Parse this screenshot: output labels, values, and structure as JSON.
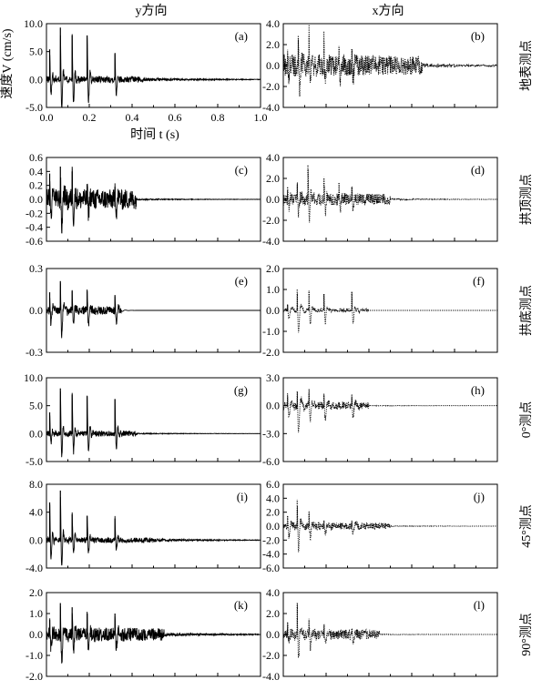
{
  "headings": {
    "left": "y方向",
    "right": "x方向"
  },
  "ylabel": "速度V (cm/s)",
  "xlabel": "时间 t (s)",
  "row_labels": [
    "地表测点",
    "拱顶测点",
    "拱底测点",
    "0°测点",
    "45°测点",
    "90°测点"
  ],
  "x_ticks": [
    "0.0",
    "0.2",
    "0.4",
    "0.6",
    "0.8",
    "1.0"
  ],
  "chart_data": [
    {
      "id": "a",
      "panel_label": "(a)",
      "type": "line",
      "style": "solid",
      "direction": "y",
      "location": "地表测点",
      "ylim": [
        -5,
        10
      ],
      "yticks": [
        "10.0",
        "5.0",
        "0.0",
        "-5.0"
      ],
      "show_x_ticklabels": true,
      "xlim": [
        0,
        1
      ],
      "peaks": [
        {
          "t": 0.015,
          "v": 5.4
        },
        {
          "t": 0.065,
          "v": 9.3
        },
        {
          "t": 0.12,
          "v": 7.9
        },
        {
          "t": 0.19,
          "v": 7.9
        },
        {
          "t": 0.32,
          "v": 4.6
        }
      ],
      "trough": -3.8,
      "noise": 0.6,
      "decay": 0.04,
      "tail_end": 0.45,
      "tail": 0.3
    },
    {
      "id": "b",
      "panel_label": "(b)",
      "type": "line",
      "style": "dotted",
      "direction": "x",
      "location": "地表测点",
      "ylim": [
        -4,
        4
      ],
      "yticks": [
        "4.0",
        "2.0",
        "0.0",
        "-2.0",
        "-4.0"
      ],
      "show_x_ticklabels": false,
      "xlim": [
        0,
        1
      ],
      "peaks": [
        {
          "t": 0.02,
          "v": 1.5
        },
        {
          "t": 0.07,
          "v": 2.9
        },
        {
          "t": 0.12,
          "v": 2.8
        },
        {
          "t": 0.19,
          "v": 2.3
        },
        {
          "t": 0.26,
          "v": 1.9
        },
        {
          "t": 0.32,
          "v": 1.6
        }
      ],
      "trough": -3.1,
      "noise": 1.1,
      "decay": 0.12,
      "tail_end": 0.65,
      "tail": 0.18
    },
    {
      "id": "c",
      "panel_label": "(c)",
      "type": "line",
      "style": "solid",
      "direction": "y",
      "location": "拱顶测点",
      "ylim": [
        -0.6,
        0.6
      ],
      "yticks": [
        "0.6",
        "0.4",
        "0.2",
        "0.0",
        "-0.2",
        "-0.4",
        "-0.6"
      ],
      "show_x_ticklabels": false,
      "xlim": [
        0,
        1
      ],
      "peaks": [
        {
          "t": 0.015,
          "v": 0.37
        },
        {
          "t": 0.065,
          "v": 0.47
        },
        {
          "t": 0.12,
          "v": 0.4
        },
        {
          "t": 0.19,
          "v": 0.22
        },
        {
          "t": 0.32,
          "v": 0.18
        }
      ],
      "trough": -0.57,
      "noise": 0.15,
      "decay": 0.05,
      "tail_end": 0.42,
      "tail": 0.01
    },
    {
      "id": "d",
      "panel_label": "(d)",
      "type": "line",
      "style": "dotted",
      "direction": "x",
      "location": "拱顶测点",
      "ylim": [
        -4,
        4
      ],
      "yticks": [
        "4.0",
        "2.0",
        "0.0",
        "-2.0",
        "-4.0"
      ],
      "show_x_ticklabels": false,
      "xlim": [
        0,
        1
      ],
      "peaks": [
        {
          "t": 0.02,
          "v": 1.2
        },
        {
          "t": 0.065,
          "v": 1.5
        },
        {
          "t": 0.115,
          "v": 3.3
        },
        {
          "t": 0.19,
          "v": 2.1
        },
        {
          "t": 0.26,
          "v": 1.6
        },
        {
          "t": 0.32,
          "v": 1.2
        }
      ],
      "trough": -2.0,
      "noise": 0.6,
      "decay": 0.06,
      "tail_end": 0.5,
      "tail": 0.06
    },
    {
      "id": "e",
      "panel_label": "(e)",
      "type": "line",
      "style": "solid",
      "direction": "y",
      "location": "拱底测点",
      "ylim": [
        -0.3,
        0.3
      ],
      "yticks": [
        "0.3",
        "0.0",
        "-0.3"
      ],
      "show_x_ticklabels": false,
      "xlim": [
        0,
        1
      ],
      "peaks": [
        {
          "t": 0.015,
          "v": 0.13
        },
        {
          "t": 0.065,
          "v": 0.21
        },
        {
          "t": 0.12,
          "v": 0.14
        },
        {
          "t": 0.19,
          "v": 0.14
        },
        {
          "t": 0.32,
          "v": 0.11
        }
      ],
      "trough": -0.25,
      "noise": 0.03,
      "decay": 0.015,
      "tail_end": 0.35,
      "tail": 0.0
    },
    {
      "id": "f",
      "panel_label": "(f)",
      "type": "line",
      "style": "dotted",
      "direction": "x",
      "location": "拱底测点",
      "ylim": [
        -2,
        2
      ],
      "yticks": [
        "2.0",
        "1.0",
        "0.0",
        "-1.0",
        "-2.0"
      ],
      "show_x_ticklabels": false,
      "xlim": [
        0,
        1
      ],
      "peaks": [
        {
          "t": 0.02,
          "v": 0.3
        },
        {
          "t": 0.065,
          "v": 1.0
        },
        {
          "t": 0.12,
          "v": 0.9
        },
        {
          "t": 0.19,
          "v": 0.8
        },
        {
          "t": 0.32,
          "v": 0.9
        }
      ],
      "trough": -1.7,
      "noise": 0.08,
      "decay": 0.04,
      "tail_end": 0.4,
      "tail": 0.0
    },
    {
      "id": "g",
      "panel_label": "(g)",
      "type": "line",
      "style": "solid",
      "direction": "y",
      "location": "0°测点",
      "ylim": [
        -5,
        10
      ],
      "yticks": [
        "10.0",
        "5.0",
        "0.0",
        "-5.0"
      ],
      "show_x_ticklabels": false,
      "xlim": [
        0,
        1
      ],
      "peaks": [
        {
          "t": 0.015,
          "v": 3.8
        },
        {
          "t": 0.065,
          "v": 8.1
        },
        {
          "t": 0.12,
          "v": 7.0
        },
        {
          "t": 0.19,
          "v": 6.7
        },
        {
          "t": 0.32,
          "v": 6.2
        }
      ],
      "trough": -1.8,
      "noise": 0.5,
      "decay": 0.04,
      "tail_end": 0.42,
      "tail": 0.1
    },
    {
      "id": "h",
      "panel_label": "(h)",
      "type": "line",
      "style": "dotted",
      "direction": "x",
      "location": "0°测点",
      "ylim": [
        -6,
        3
      ],
      "yticks": [
        "3.0",
        "0.0",
        "-3.0",
        "-6.0"
      ],
      "show_x_ticklabels": false,
      "xlim": [
        0,
        1
      ],
      "peaks": [
        {
          "t": 0.02,
          "v": 1.0
        },
        {
          "t": 0.065,
          "v": 1.6
        },
        {
          "t": 0.12,
          "v": 1.4
        },
        {
          "t": 0.19,
          "v": 1.2
        },
        {
          "t": 0.32,
          "v": 1.0
        }
      ],
      "trough": -5.0,
      "noise": 0.4,
      "decay": 0.05,
      "tail_end": 0.4,
      "tail": 0.03
    },
    {
      "id": "i",
      "panel_label": "(i)",
      "type": "line",
      "style": "solid",
      "direction": "y",
      "location": "45°测点",
      "ylim": [
        -4,
        8
      ],
      "yticks": [
        "8.0",
        "4.0",
        "0.0",
        "-4.0"
      ],
      "show_x_ticklabels": false,
      "xlim": [
        0,
        1
      ],
      "peaks": [
        {
          "t": 0.015,
          "v": 5.4
        },
        {
          "t": 0.065,
          "v": 7.1
        },
        {
          "t": 0.12,
          "v": 3.7
        },
        {
          "t": 0.19,
          "v": 3.5
        },
        {
          "t": 0.32,
          "v": 3.1
        }
      ],
      "trough": -2.1,
      "noise": 0.4,
      "decay": 0.05,
      "tail_end": 0.5,
      "tail": 0.2
    },
    {
      "id": "j",
      "panel_label": "(j)",
      "type": "line",
      "style": "dotted",
      "direction": "x",
      "location": "45°测点",
      "ylim": [
        -6,
        6
      ],
      "yticks": [
        "6.0",
        "4.0",
        "2.0",
        "0.0",
        "-2.0",
        "-4.0",
        "-6.0"
      ],
      "show_x_ticklabels": false,
      "xlim": [
        0,
        1
      ],
      "peaks": [
        {
          "t": 0.02,
          "v": 1.5
        },
        {
          "t": 0.065,
          "v": 3.8
        },
        {
          "t": 0.12,
          "v": 1.7
        },
        {
          "t": 0.19,
          "v": 0.8
        },
        {
          "t": 0.32,
          "v": 0.7
        }
      ],
      "trough": -4.7,
      "noise": 0.5,
      "decay": 0.06,
      "tail_end": 0.5,
      "tail": 0.05
    },
    {
      "id": "k",
      "panel_label": "(k)",
      "type": "line",
      "style": "solid",
      "direction": "y",
      "location": "90°测点",
      "ylim": [
        -2,
        2
      ],
      "yticks": [
        "2.0",
        "1.0",
        "0.0",
        "-1.0",
        "-2.0"
      ],
      "show_x_ticklabels": false,
      "xlim": [
        0,
        1
      ],
      "peaks": [
        {
          "t": 0.015,
          "v": 0.7
        },
        {
          "t": 0.065,
          "v": 1.5
        },
        {
          "t": 0.12,
          "v": 1.3
        },
        {
          "t": 0.19,
          "v": 1.0
        },
        {
          "t": 0.32,
          "v": 1.0
        }
      ],
      "trough": -1.7,
      "noise": 0.35,
      "decay": 0.1,
      "tail_end": 0.55,
      "tail": 0.08
    },
    {
      "id": "l",
      "panel_label": "(l)",
      "type": "line",
      "style": "dotted",
      "direction": "x",
      "location": "90°测点",
      "ylim": [
        -4,
        4
      ],
      "yticks": [
        "4.0",
        "2.0",
        "0.0",
        "-2.0",
        "-4.0"
      ],
      "show_x_ticklabels": false,
      "xlim": [
        0,
        1
      ],
      "peaks": [
        {
          "t": 0.02,
          "v": 1.2
        },
        {
          "t": 0.065,
          "v": 3.0
        },
        {
          "t": 0.12,
          "v": 1.5
        },
        {
          "t": 0.19,
          "v": 0.9
        },
        {
          "t": 0.32,
          "v": 0.5
        }
      ],
      "trough": -2.8,
      "noise": 0.5,
      "decay": 0.06,
      "tail_end": 0.45,
      "tail": 0.03
    }
  ]
}
